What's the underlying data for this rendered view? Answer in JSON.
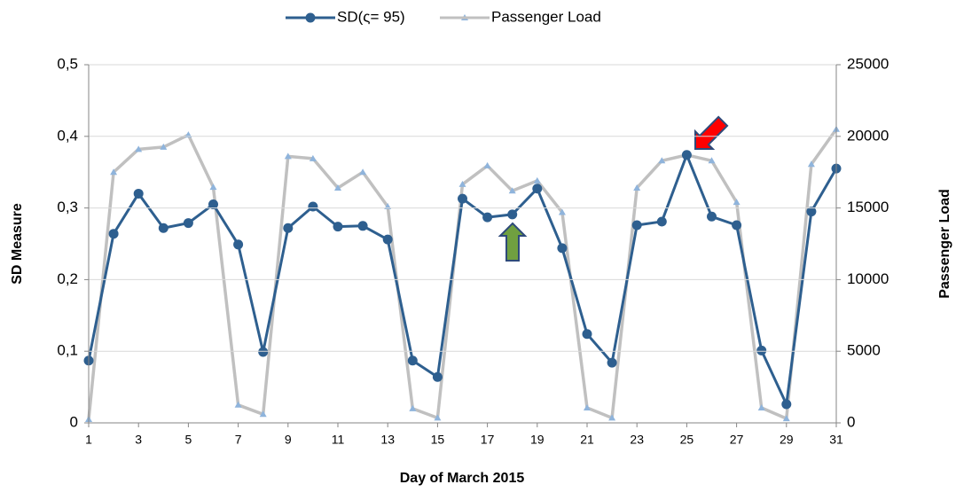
{
  "chart_data": {
    "type": "line",
    "xlabel": "Day of March 2015",
    "ylabel": "SD Measure",
    "y2label": "Passenger Load",
    "x": [
      1,
      2,
      3,
      4,
      5,
      6,
      7,
      8,
      9,
      10,
      11,
      12,
      13,
      14,
      15,
      16,
      17,
      18,
      19,
      20,
      21,
      22,
      23,
      24,
      25,
      26,
      27,
      28,
      29,
      30,
      31
    ],
    "xlim": [
      1,
      31
    ],
    "xticks": [
      1,
      3,
      5,
      7,
      9,
      11,
      13,
      15,
      17,
      19,
      21,
      23,
      25,
      27,
      29,
      31
    ],
    "ylim": [
      0,
      0.5
    ],
    "yticks": [
      0,
      {
        "value": 0.1,
        "label": "0,1"
      },
      {
        "value": 0.2,
        "label": "0,2"
      },
      {
        "value": 0.3,
        "label": "0,3"
      },
      {
        "value": 0.4,
        "label": "0,4"
      },
      {
        "value": 0.5,
        "label": "0,5"
      }
    ],
    "y2lim": [
      0,
      25000
    ],
    "y2ticks": [
      0,
      5000,
      10000,
      15000,
      20000,
      25000
    ],
    "grid": true,
    "legend": "top",
    "series": [
      {
        "name": "SD(ς= 95)",
        "color": "#2e5f8f",
        "marker": "circle",
        "values": [
          0.087,
          0.264,
          0.32,
          0.272,
          0.279,
          0.305,
          0.249,
          0.099,
          0.272,
          0.302,
          0.274,
          0.275,
          0.256,
          0.087,
          0.064,
          0.313,
          0.287,
          0.291,
          0.327,
          0.244,
          0.124,
          0.084,
          0.276,
          0.281,
          0.374,
          0.288,
          0.276,
          0.101,
          0.026,
          0.295,
          0.355
        ]
      },
      {
        "name": "Passenger Load",
        "color": "#c0c0c0",
        "marker": "triangle",
        "axis": "y2",
        "values": [
          250,
          17500,
          19100,
          19250,
          20100,
          16450,
          1250,
          600,
          18600,
          18450,
          16400,
          17500,
          15100,
          1000,
          350,
          16650,
          17950,
          16200,
          16900,
          14700,
          1050,
          350,
          16400,
          18300,
          18700,
          18300,
          15400,
          1050,
          300,
          18050,
          20500
        ]
      }
    ]
  }
}
